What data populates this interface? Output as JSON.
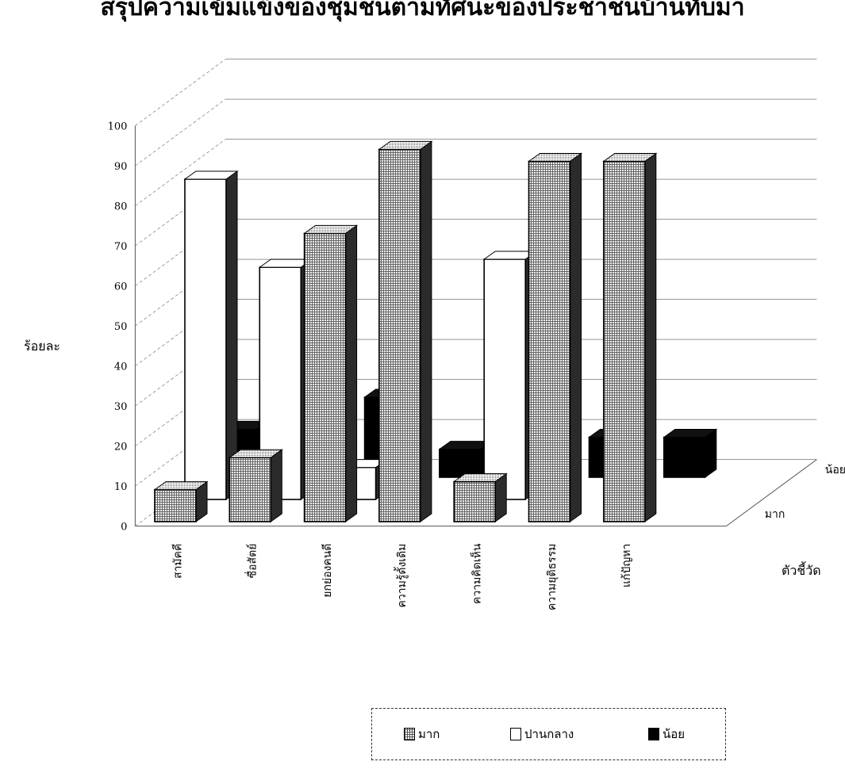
{
  "chart_data": {
    "type": "bar",
    "title": "สรุปความเข้มแข็งของชุมชนตามทัศนะของประชาชนบ้านทับมา",
    "ylabel": "ร้อยละ",
    "xlabel": "ตัวชี้วัด",
    "ylim": [
      0,
      100
    ],
    "yticks": [
      "0",
      "10",
      "20",
      "30",
      "40",
      "50",
      "60",
      "70",
      "80",
      "90",
      "100"
    ],
    "grid": true,
    "legend": "bottom",
    "categories": [
      "สามัคคี",
      "ซื่อสัตย์",
      "ยกย่องคนดี",
      "ความรู้ดั้งเดิม",
      "ความคิดเห็น",
      "ความยุติธรรม",
      "แก้ปัญหา"
    ],
    "depth_labels": [
      "มาก",
      "น้อย"
    ],
    "series": [
      {
        "name": "มาก",
        "color": "#dcdcdc",
        "values": [
          8,
          16,
          72,
          93,
          10,
          90,
          90
        ]
      },
      {
        "name": "ปานกลาง",
        "color": "#ffffff",
        "values": [
          80,
          58,
          8,
          0,
          60,
          0,
          0
        ]
      },
      {
        "name": "น้อย",
        "color": "#000000",
        "values": [
          12,
          26,
          20,
          7,
          30,
          10,
          10
        ]
      }
    ]
  }
}
